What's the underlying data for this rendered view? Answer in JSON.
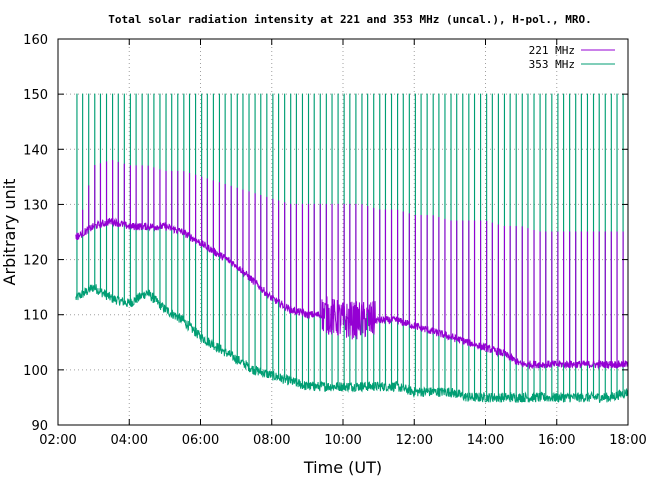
{
  "chart_data": {
    "type": "line",
    "title": "Total solar radiation intensity at 221 and 353 MHz (uncal.), H-pol., MRO.",
    "xlabel": "Time (UT)",
    "ylabel": "Arbitrary unit",
    "xlim": [
      "02:00",
      "18:00"
    ],
    "ylim": [
      90,
      160
    ],
    "x_ticks": [
      "02:00",
      "04:00",
      "06:00",
      "08:00",
      "10:00",
      "12:00",
      "14:00",
      "16:00",
      "18:00"
    ],
    "y_ticks": [
      90,
      100,
      110,
      120,
      130,
      140,
      150,
      160
    ],
    "grid": true,
    "legend_position": "top-right",
    "series": [
      {
        "name": "221 MHz",
        "color": "#9400d3",
        "x": [
          "02:30",
          "03:00",
          "03:30",
          "04:00",
          "04:30",
          "05:00",
          "05:30",
          "06:00",
          "06:30",
          "07:00",
          "07:30",
          "08:00",
          "08:30",
          "09:00",
          "09:30",
          "10:00",
          "10:30",
          "11:00",
          "11:30",
          "12:00",
          "12:30",
          "13:00",
          "13:30",
          "14:00",
          "14:30",
          "15:00",
          "15:30",
          "16:00",
          "16:30",
          "17:00",
          "17:30",
          "18:00"
        ],
        "values": [
          124,
          126,
          127,
          126,
          126,
          126,
          125,
          123,
          121,
          119,
          116,
          113,
          111,
          110,
          110,
          109,
          109,
          109,
          109,
          108,
          107,
          106,
          105,
          104,
          103,
          101,
          101,
          101,
          101,
          101,
          101,
          101
        ],
        "spike_peak": [
          124,
          137,
          138,
          137,
          137,
          136,
          136,
          135,
          134,
          133,
          132,
          131,
          130,
          130,
          130,
          130,
          130,
          129,
          129,
          128,
          128,
          127,
          127,
          127,
          126,
          126,
          125,
          125,
          125,
          125,
          125,
          125
        ]
      },
      {
        "name": "353 MHz",
        "color": "#009e73",
        "x": [
          "02:30",
          "03:00",
          "03:30",
          "04:00",
          "04:30",
          "05:00",
          "05:30",
          "06:00",
          "06:30",
          "07:00",
          "07:30",
          "08:00",
          "08:30",
          "09:00",
          "09:30",
          "10:00",
          "10:30",
          "11:00",
          "11:30",
          "12:00",
          "12:30",
          "13:00",
          "13:30",
          "14:00",
          "14:30",
          "15:00",
          "15:30",
          "16:00",
          "16:30",
          "17:00",
          "17:30",
          "18:00"
        ],
        "values": [
          113,
          115,
          113,
          112,
          114,
          111,
          109,
          106,
          104,
          102,
          100,
          99,
          98,
          97,
          97,
          97,
          97,
          97,
          97,
          96,
          96,
          96,
          95,
          95,
          95,
          95,
          95,
          95,
          95,
          95,
          95,
          96
        ],
        "spike_peak": [
          150,
          150,
          150,
          150,
          150,
          150,
          150,
          150,
          150,
          150,
          150,
          150,
          150,
          150,
          150,
          150,
          150,
          150,
          150,
          150,
          150,
          150,
          150,
          150,
          150,
          150,
          150,
          150,
          150,
          150,
          150,
          150
        ]
      }
    ]
  }
}
